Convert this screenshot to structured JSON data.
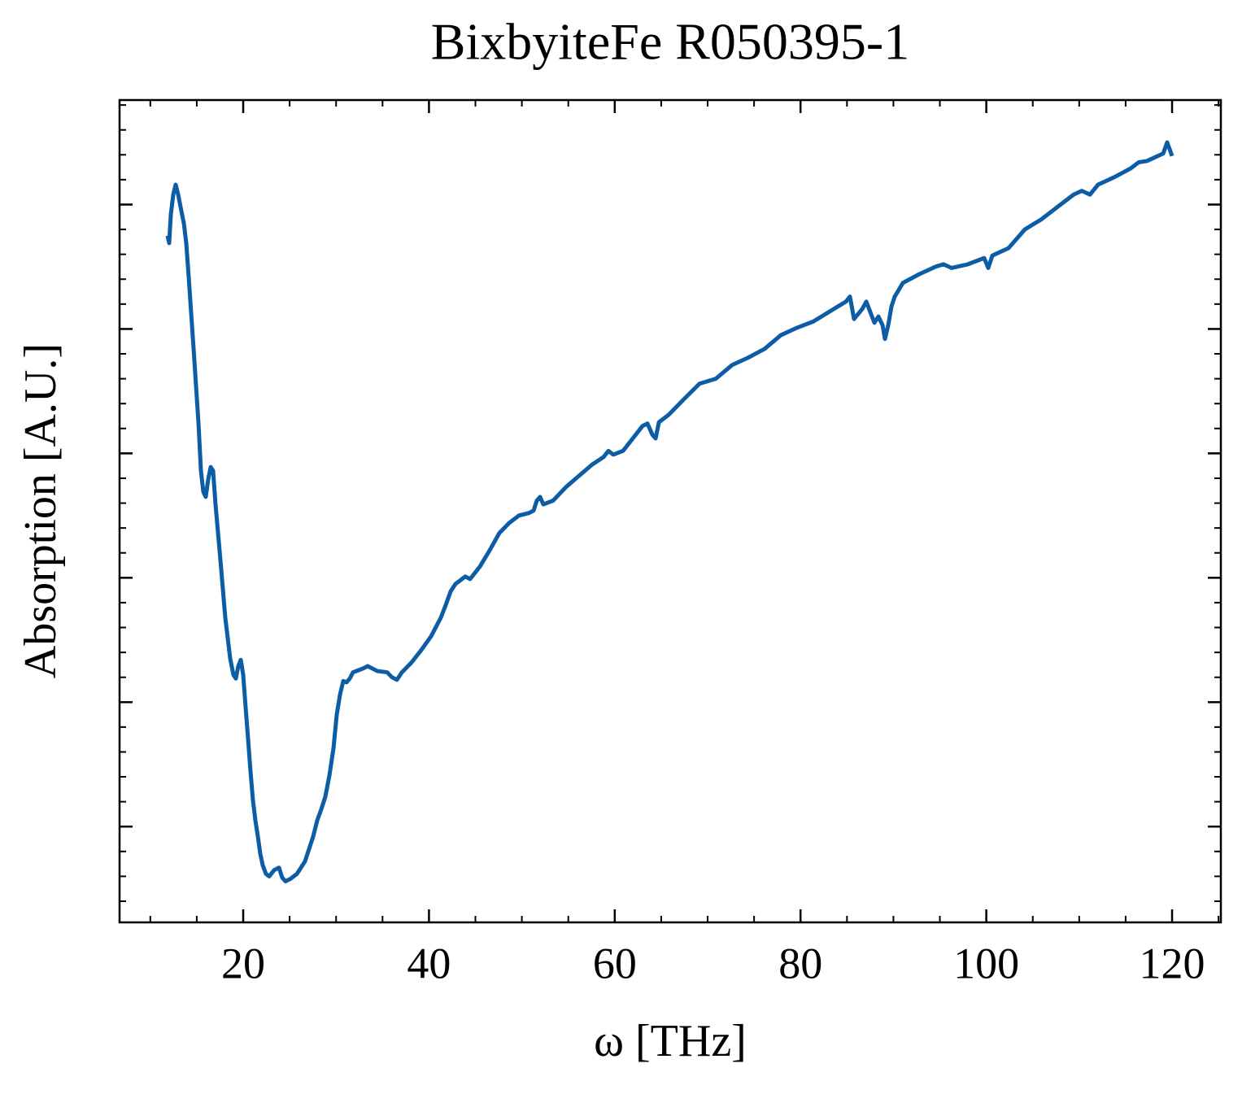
{
  "chart_data": {
    "type": "line",
    "title": "BixbyiteFe R050395-1",
    "x_label": "ω [THz]",
    "y_label": "Absorption [A.U.]",
    "color": "#0C5DA5",
    "x": [
      11.86,
      12.03,
      12.21,
      12.47,
      12.73,
      13.0,
      13.26,
      13.61,
      13.87,
      14.13,
      14.66,
      15.18,
      15.45,
      15.71,
      15.97,
      16.23,
      16.5,
      16.76,
      17.02,
      17.55,
      18.07,
      18.6,
      18.95,
      19.21,
      19.47,
      19.74,
      20.0,
      20.26,
      20.53,
      20.79,
      21.05,
      21.31,
      21.58,
      21.84,
      22.1,
      22.45,
      22.8,
      23.33,
      23.85,
      24.2,
      24.55,
      25.08,
      25.78,
      26.22,
      26.65,
      27.09,
      27.53,
      27.97,
      28.41,
      28.84,
      29.28,
      29.72,
      30.07,
      30.42,
      30.77,
      31.12,
      31.47,
      31.82,
      32.87,
      33.4,
      34.45,
      35.5,
      36.02,
      36.55,
      37.08,
      38.13,
      39.18,
      40.23,
      41.28,
      41.8,
      42.33,
      42.85,
      43.91,
      44.43,
      45.48,
      46.53,
      47.58,
      48.63,
      49.68,
      50.74,
      51.26,
      51.61,
      51.96,
      52.31,
      53.36,
      54.76,
      56.16,
      57.57,
      58.79,
      59.32,
      59.84,
      60.89,
      61.94,
      62.99,
      63.52,
      64.05,
      64.4,
      64.75,
      65.8,
      67.37,
      69.12,
      70.88,
      72.63,
      74.38,
      76.13,
      77.88,
      79.63,
      81.38,
      83.13,
      84.89,
      85.32,
      85.76,
      86.64,
      87.08,
      87.95,
      88.39,
      88.83,
      89.09,
      89.44,
      89.79,
      90.14,
      91.02,
      92.77,
      94.52,
      95.39,
      96.27,
      98.02,
      99.77,
      100.21,
      100.65,
      102.4,
      104.15,
      105.9,
      107.65,
      109.4,
      110.28,
      111.16,
      112.03,
      113.78,
      115.53,
      116.41,
      117.29,
      119.04,
      119.47,
      120.0
    ],
    "values": [
      4.75,
      4.69,
      4.92,
      5.08,
      5.16,
      5.08,
      4.98,
      4.85,
      4.69,
      4.42,
      3.84,
      3.25,
      2.86,
      2.69,
      2.65,
      2.79,
      2.89,
      2.86,
      2.59,
      2.14,
      1.68,
      1.35,
      1.22,
      1.19,
      1.29,
      1.34,
      1.22,
      0.96,
      0.7,
      0.44,
      0.21,
      0.05,
      -0.08,
      -0.22,
      -0.31,
      -0.38,
      -0.4,
      -0.35,
      -0.33,
      -0.41,
      -0.44,
      -0.42,
      -0.38,
      -0.33,
      -0.28,
      -0.18,
      -0.08,
      0.05,
      0.14,
      0.24,
      0.41,
      0.63,
      0.9,
      1.06,
      1.17,
      1.16,
      1.19,
      1.24,
      1.27,
      1.29,
      1.25,
      1.24,
      1.2,
      1.18,
      1.24,
      1.32,
      1.42,
      1.53,
      1.68,
      1.78,
      1.89,
      1.95,
      2.01,
      1.99,
      2.09,
      2.22,
      2.36,
      2.44,
      2.5,
      2.52,
      2.54,
      2.62,
      2.65,
      2.59,
      2.62,
      2.73,
      2.82,
      2.91,
      2.97,
      3.02,
      2.99,
      3.02,
      3.12,
      3.22,
      3.24,
      3.15,
      3.12,
      3.25,
      3.31,
      3.43,
      3.56,
      3.6,
      3.71,
      3.77,
      3.84,
      3.95,
      4.01,
      4.06,
      4.14,
      4.22,
      4.26,
      4.08,
      4.16,
      4.22,
      4.05,
      4.1,
      4.03,
      3.92,
      4.03,
      4.18,
      4.26,
      4.37,
      4.44,
      4.5,
      4.52,
      4.49,
      4.52,
      4.57,
      4.49,
      4.59,
      4.65,
      4.8,
      4.88,
      4.98,
      5.08,
      5.11,
      5.08,
      5.16,
      5.22,
      5.29,
      5.34,
      5.35,
      5.41,
      5.5,
      5.39
    ],
    "xlim": [
      6.69,
      125.25
    ],
    "xticks": [
      20,
      40,
      60,
      80,
      100,
      120
    ],
    "xminor": [
      10,
      15,
      25,
      30,
      35,
      45,
      50,
      55,
      65,
      70,
      75,
      85,
      90,
      95,
      105,
      110,
      115,
      125
    ],
    "ylim": [
      -0.77,
      5.84
    ],
    "yticks": [
      0,
      1,
      2,
      3,
      4,
      5
    ],
    "yminor": [
      -0.6,
      -0.4,
      -0.2,
      0.2,
      0.4,
      0.6,
      0.8,
      1.2,
      1.4,
      1.6,
      1.8,
      2.2,
      2.4,
      2.6,
      2.8,
      3.2,
      3.4,
      3.6,
      3.8,
      4.2,
      4.4,
      4.6,
      4.8,
      5.2,
      5.4,
      5.6,
      5.8
    ],
    "ytick_labels": false,
    "grid": false
  }
}
